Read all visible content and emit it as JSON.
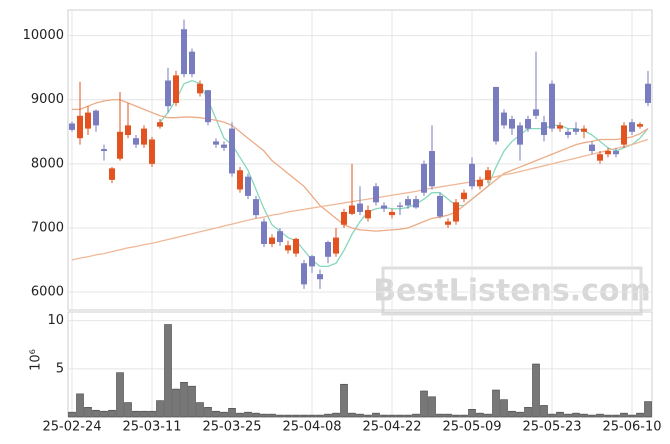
{
  "chart_data": {
    "type": "candlestick",
    "categories": [
      "25-02-24",
      null,
      null,
      null,
      null,
      null,
      null,
      null,
      null,
      null,
      "25-03-11",
      null,
      null,
      null,
      null,
      null,
      null,
      null,
      null,
      null,
      "25-03-25",
      null,
      null,
      null,
      null,
      null,
      null,
      null,
      null,
      null,
      "25-04-08",
      null,
      null,
      null,
      null,
      null,
      null,
      null,
      null,
      null,
      "25-04-22",
      null,
      null,
      null,
      null,
      null,
      null,
      null,
      null,
      null,
      "25-05-09",
      null,
      null,
      null,
      null,
      null,
      null,
      null,
      null,
      null,
      "25-05-23",
      null,
      null,
      null,
      null,
      null,
      null,
      null,
      null,
      null,
      "25-06-10",
      null,
      null
    ],
    "open": [
      8630,
      8400,
      8550,
      8830,
      8230,
      7750,
      8080,
      8450,
      8400,
      8300,
      8000,
      8580,
      9300,
      8950,
      10100,
      9750,
      9100,
      9150,
      8350,
      8300,
      8550,
      7600,
      7800,
      7450,
      7100,
      6750,
      6950,
      6650,
      6600,
      6450,
      6560,
      6280,
      6780,
      6600,
      7050,
      7220,
      7380,
      7150,
      7650,
      7350,
      7200,
      7350,
      7450,
      7450,
      8000,
      8200,
      7500,
      7050,
      7100,
      7450,
      8000,
      7650,
      7750,
      9200,
      8800,
      8700,
      8600,
      8700,
      8850,
      8650,
      9250,
      8550,
      8500,
      8550,
      8500,
      8300,
      8050,
      8150,
      8200,
      8300,
      8650,
      8580,
      9250
    ],
    "high": [
      8660,
      9280,
      8900,
      8850,
      8300,
      7950,
      9120,
      8950,
      8450,
      8600,
      8420,
      8700,
      9500,
      9450,
      10250,
      9800,
      9300,
      9150,
      8400,
      8350,
      8650,
      7950,
      7850,
      7500,
      7150,
      6900,
      7000,
      6800,
      6850,
      6500,
      6580,
      6350,
      6800,
      7000,
      7300,
      8000,
      7650,
      7350,
      7700,
      7400,
      7300,
      7400,
      7500,
      7500,
      8050,
      8600,
      7550,
      7150,
      7450,
      7600,
      8100,
      7800,
      7950,
      9200,
      8850,
      8750,
      8650,
      8750,
      9750,
      8750,
      9300,
      8650,
      8550,
      8650,
      8600,
      8350,
      8200,
      8250,
      8250,
      8650,
      8700,
      8650,
      9450
    ],
    "low": [
      8500,
      8300,
      8450,
      8500,
      8050,
      7700,
      8050,
      8400,
      8250,
      8250,
      7950,
      8550,
      8800,
      8900,
      9350,
      9350,
      9050,
      8600,
      8250,
      8200,
      7800,
      7550,
      7450,
      7150,
      6700,
      6700,
      6720,
      6600,
      6550,
      6050,
      6300,
      6050,
      6450,
      6550,
      7000,
      7200,
      7200,
      7100,
      7350,
      7250,
      7150,
      7200,
      7300,
      7300,
      7500,
      7600,
      7150,
      7000,
      7050,
      7400,
      7600,
      7600,
      7700,
      8300,
      8550,
      8450,
      8050,
      8500,
      8700,
      8350,
      8500,
      8500,
      8400,
      8450,
      8400,
      8150,
      8000,
      8100,
      8100,
      8250,
      8450,
      8550,
      8900
    ],
    "close": [
      8530,
      8750,
      8800,
      8600,
      8200,
      7930,
      8500,
      8600,
      8300,
      8550,
      8380,
      8650,
      8900,
      9380,
      9400,
      9400,
      9250,
      8650,
      8300,
      8250,
      7850,
      7900,
      7500,
      7200,
      6750,
      6850,
      6780,
      6730,
      6830,
      6120,
      6400,
      6200,
      6550,
      6850,
      7250,
      7350,
      7250,
      7280,
      7400,
      7300,
      7250,
      7330,
      7350,
      7320,
      7550,
      7650,
      7180,
      7100,
      7400,
      7550,
      7650,
      7750,
      7900,
      8350,
      8600,
      8550,
      8300,
      8550,
      8750,
      8450,
      8550,
      8600,
      8450,
      8500,
      8550,
      8200,
      8150,
      8200,
      8150,
      8600,
      8500,
      8620,
      8950
    ],
    "up_color": "#e2531f",
    "down_color": "#7a7cc0",
    "lines": [
      {
        "color": "#86d8bc",
        "values": [
          null,
          null,
          null,
          null,
          null,
          null,
          null,
          null,
          null,
          null,
          null,
          8650,
          8800,
          9000,
          9250,
          9300,
          9250,
          9000,
          8700,
          8400,
          8300,
          8100,
          7900,
          7600,
          7300,
          7050,
          6950,
          6850,
          6800,
          6650,
          6500,
          6400,
          6400,
          6450,
          6650,
          6900,
          7100,
          7250,
          7300,
          7320,
          7300,
          7300,
          7320,
          7370,
          7450,
          7550,
          7550,
          7450,
          7350,
          7350,
          7450,
          7550,
          7650,
          7950,
          8200,
          8350,
          8450,
          8550,
          8550,
          8550,
          8600,
          8600,
          8550,
          8550,
          8520,
          8450,
          8350,
          8250,
          8200,
          8250,
          8300,
          8400,
          8550
        ]
      },
      {
        "color": "#ecab86",
        "values": [
          8850,
          8850,
          8900,
          8950,
          8980,
          9000,
          9000,
          8950,
          8900,
          8850,
          8800,
          8750,
          8720,
          8720,
          8730,
          8730,
          8720,
          8700,
          8680,
          8650,
          8600,
          8500,
          8400,
          8300,
          8200,
          8050,
          7950,
          7850,
          7750,
          7650,
          7500,
          7350,
          7250,
          7150,
          7050,
          7000,
          6970,
          6960,
          6950,
          6960,
          6970,
          6980,
          7000,
          7050,
          7100,
          7150,
          7170,
          7200,
          7250,
          7350,
          7450,
          7550,
          7650,
          7750,
          7850,
          7900,
          7950,
          8000,
          8050,
          8100,
          8150,
          8200,
          8250,
          8300,
          8330,
          8350,
          8380,
          8380,
          8380,
          8400,
          8420,
          8470,
          8550
        ]
      },
      {
        "color": "#f0b898",
        "values": [
          6500,
          6530,
          6550,
          6580,
          6600,
          6630,
          6660,
          6690,
          6710,
          6740,
          6760,
          6790,
          6820,
          6850,
          6880,
          6910,
          6940,
          6970,
          7000,
          7030,
          7060,
          7090,
          7120,
          7150,
          7170,
          7200,
          7220,
          7250,
          7270,
          7290,
          7310,
          7330,
          7350,
          7370,
          7390,
          7410,
          7430,
          7450,
          7470,
          7490,
          7510,
          7530,
          7550,
          7570,
          7600,
          7620,
          7640,
          7660,
          7680,
          7700,
          7720,
          7750,
          7770,
          7800,
          7830,
          7850,
          7880,
          7910,
          7940,
          7970,
          8000,
          8030,
          8060,
          8090,
          8120,
          8150,
          8180,
          8210,
          8240,
          8270,
          8300,
          8340,
          8380
        ]
      }
    ],
    "ylim": [
      5720,
      10400
    ],
    "yticks": [
      6000,
      7000,
      8000,
      9000,
      10000
    ],
    "grid": true,
    "watermark": "BestListens.com",
    "volume": {
      "type": "bar",
      "color": "#777777",
      "offset_text": "10⁶",
      "ylim": [
        0,
        10.9
      ],
      "yticks": [
        5,
        10
      ],
      "values": [
        0.5,
        2.4,
        1.0,
        0.7,
        0.6,
        0.7,
        4.6,
        1.5,
        0.6,
        0.6,
        0.6,
        1.7,
        9.6,
        2.9,
        3.6,
        3.2,
        1.5,
        1.0,
        0.6,
        0.5,
        0.9,
        0.4,
        0.5,
        0.4,
        0.3,
        0.3,
        0.2,
        0.2,
        0.2,
        0.2,
        0.2,
        0.2,
        0.3,
        0.4,
        3.4,
        0.4,
        0.3,
        0.2,
        0.4,
        0.2,
        0.2,
        0.2,
        0.2,
        0.3,
        2.7,
        2.1,
        0.3,
        0.3,
        0.2,
        0.2,
        0.8,
        0.4,
        0.3,
        2.8,
        1.8,
        0.6,
        0.5,
        1.0,
        5.5,
        1.2,
        0.3,
        0.5,
        0.3,
        0.4,
        0.3,
        0.2,
        0.3,
        0.2,
        0.2,
        0.4,
        0.2,
        0.4,
        1.6
      ]
    }
  }
}
